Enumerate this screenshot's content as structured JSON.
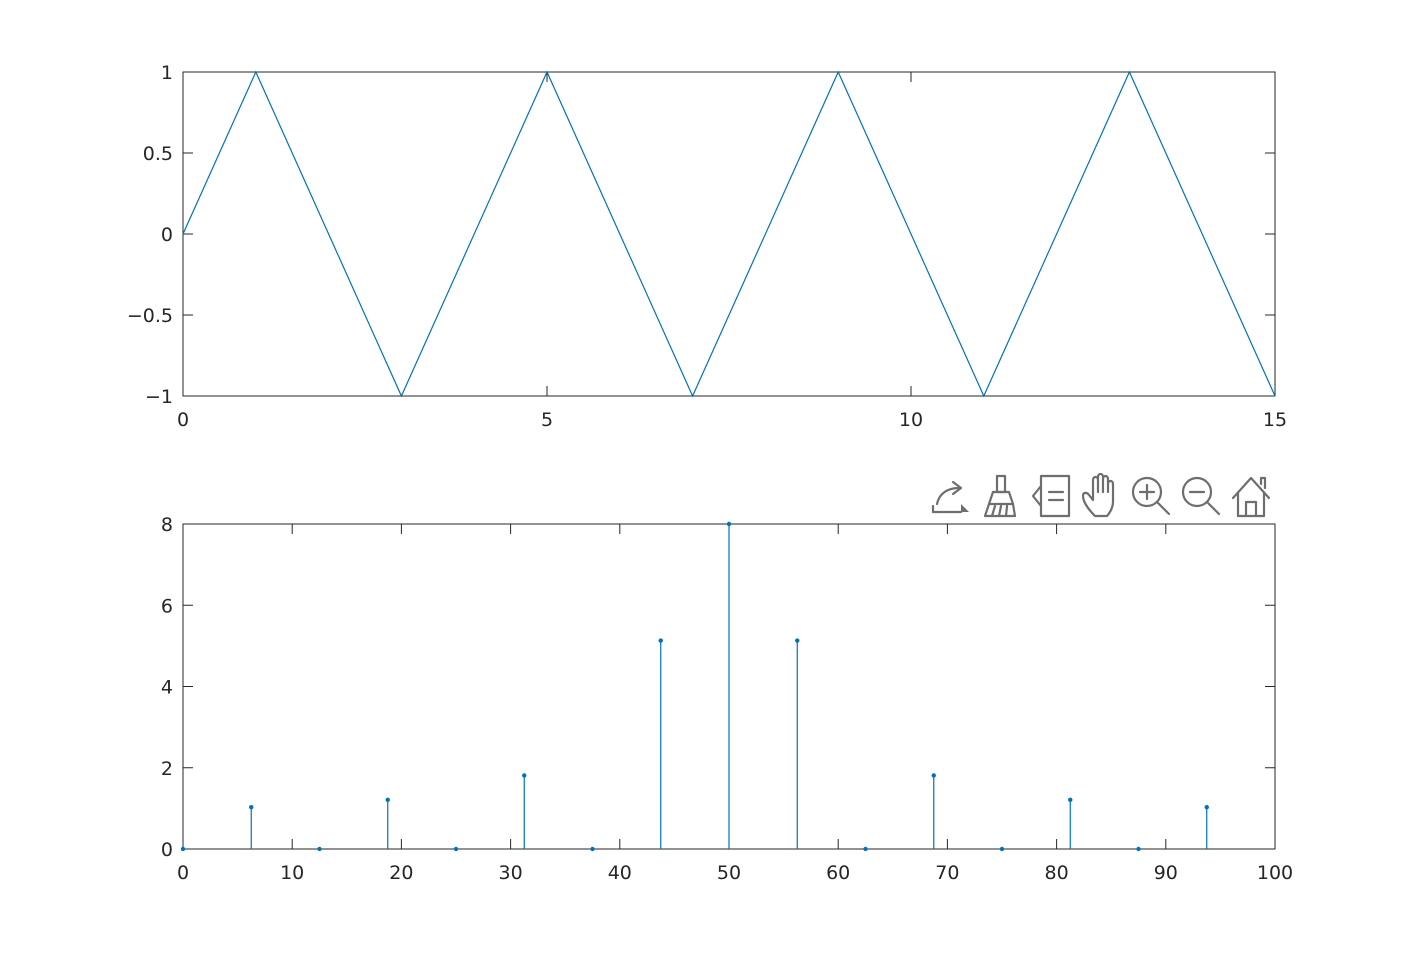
{
  "colors": {
    "series": "#0072bd",
    "axis": "#262626",
    "toolbar_icon": "#6e6e6e",
    "background": "#ffffff"
  },
  "toolbar": {
    "icons": [
      "edit-plot-icon",
      "data-brush-icon",
      "legend-icon",
      "pan-icon",
      "zoom-in-icon",
      "zoom-out-icon",
      "home-icon"
    ]
  },
  "chart_data": [
    {
      "type": "line",
      "title": "",
      "xlabel": "",
      "ylabel": "",
      "xlim": [
        0,
        15
      ],
      "ylim": [
        -1,
        1
      ],
      "xticks": [
        0,
        5,
        10,
        15
      ],
      "xtick_labels": [
        "0",
        "5",
        "10",
        "15"
      ],
      "yticks": [
        -1,
        -0.5,
        0,
        0.5,
        1
      ],
      "ytick_labels": [
        "−1",
        "−0.5",
        "0",
        "0.5",
        "1"
      ],
      "grid": false,
      "x": [
        0,
        1,
        3,
        5,
        7,
        9,
        11,
        13,
        15
      ],
      "y": [
        0,
        1,
        -1,
        1,
        -1,
        1,
        -1,
        1,
        -1
      ]
    },
    {
      "type": "stem",
      "title": "",
      "xlabel": "",
      "ylabel": "",
      "xlim": [
        0,
        100
      ],
      "ylim": [
        0,
        8
      ],
      "xticks": [
        0,
        10,
        20,
        30,
        40,
        50,
        60,
        70,
        80,
        90,
        100
      ],
      "xtick_labels": [
        "0",
        "10",
        "20",
        "30",
        "40",
        "50",
        "60",
        "70",
        "80",
        "90",
        "100"
      ],
      "yticks": [
        0,
        2,
        4,
        6,
        8
      ],
      "ytick_labels": [
        "0",
        "2",
        "4",
        "6",
        "8"
      ],
      "grid": false,
      "x": [
        0,
        6.25,
        12.5,
        18.75,
        25,
        31.25,
        37.5,
        43.75,
        50,
        56.25,
        62.5,
        68.75,
        75,
        81.25,
        87.5,
        93.75
      ],
      "y": [
        0,
        1.03,
        0,
        1.21,
        0,
        1.81,
        0,
        5.13,
        8,
        5.13,
        0,
        1.81,
        0,
        1.21,
        0,
        1.03
      ]
    }
  ]
}
